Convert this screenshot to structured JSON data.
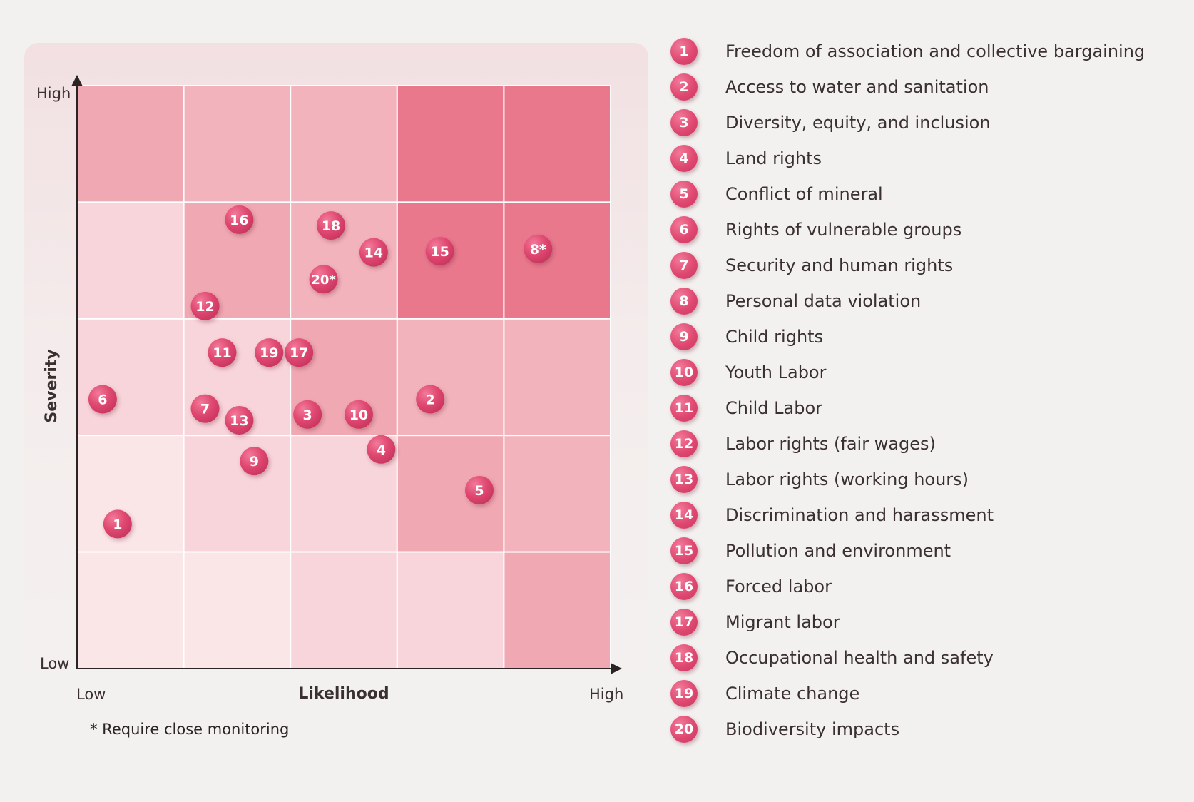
{
  "chart_data": {
    "type": "scatter",
    "title": "",
    "xlabel": "Likelihood",
    "ylabel": "Severity",
    "x_range_labels": {
      "low": "Low",
      "high": "High"
    },
    "y_range_labels": {
      "low": "Low",
      "high": "High"
    },
    "xlim": [
      0,
      5
    ],
    "ylim": [
      0,
      5
    ],
    "grid": {
      "columns": 5,
      "rows": 5
    },
    "cell_colors_top_to_bottom": [
      [
        "#f0a8b2",
        "#f2b3bc",
        "#f2b3bc",
        "#e9788c",
        "#e9788c"
      ],
      [
        "#f8d5da",
        "#f0a8b2",
        "#f2b3bc",
        "#e9788c",
        "#e9788c"
      ],
      [
        "#f8d5da",
        "#f8d5da",
        "#f0a8b2",
        "#f2b3bc",
        "#f2b3bc"
      ],
      [
        "#fae5e7",
        "#f8d5da",
        "#f8d5da",
        "#f0a8b2",
        "#f2b3bc"
      ],
      [
        "#fae5e7",
        "#fae5e7",
        "#f8d5da",
        "#f8d5da",
        "#f0a8b2"
      ]
    ],
    "points": [
      {
        "label": "1",
        "x": 0.38,
        "y": 1.24
      },
      {
        "label": "2",
        "x": 3.31,
        "y": 2.31
      },
      {
        "label": "3",
        "x": 2.16,
        "y": 2.18
      },
      {
        "label": "4",
        "x": 2.85,
        "y": 1.88
      },
      {
        "label": "5",
        "x": 3.77,
        "y": 1.53
      },
      {
        "label": "6",
        "x": 0.24,
        "y": 2.31
      },
      {
        "label": "7",
        "x": 1.2,
        "y": 2.23
      },
      {
        "label": "8*",
        "x": 4.32,
        "y": 3.6
      },
      {
        "label": "9",
        "x": 1.66,
        "y": 1.78
      },
      {
        "label": "10",
        "x": 2.64,
        "y": 2.18
      },
      {
        "label": "11",
        "x": 1.36,
        "y": 2.71
      },
      {
        "label": "12",
        "x": 1.2,
        "y": 3.11
      },
      {
        "label": "13",
        "x": 1.52,
        "y": 2.13
      },
      {
        "label": "14",
        "x": 2.78,
        "y": 3.57
      },
      {
        "label": "15",
        "x": 3.4,
        "y": 3.58
      },
      {
        "label": "16",
        "x": 1.52,
        "y": 3.85
      },
      {
        "label": "17",
        "x": 2.08,
        "y": 2.71
      },
      {
        "label": "18",
        "x": 2.38,
        "y": 3.8
      },
      {
        "label": "19",
        "x": 1.8,
        "y": 2.71
      },
      {
        "label": "20*",
        "x": 2.31,
        "y": 3.34
      }
    ],
    "legend": [
      {
        "id": "1",
        "label": "Freedom of association and collective bargaining"
      },
      {
        "id": "2",
        "label": "Access to water and sanitation"
      },
      {
        "id": "3",
        "label": "Diversity, equity, and inclusion"
      },
      {
        "id": "4",
        "label": "Land rights"
      },
      {
        "id": "5",
        "label": "Conflict of mineral"
      },
      {
        "id": "6",
        "label": "Rights of vulnerable groups"
      },
      {
        "id": "7",
        "label": "Security and human rights"
      },
      {
        "id": "8",
        "label": "Personal data violation"
      },
      {
        "id": "9",
        "label": "Child rights"
      },
      {
        "id": "10",
        "label": "Youth Labor"
      },
      {
        "id": "11",
        "label": "Child Labor"
      },
      {
        "id": "12",
        "label": "Labor rights (fair wages)"
      },
      {
        "id": "13",
        "label": "Labor rights (working hours)"
      },
      {
        "id": "14",
        "label": "Discrimination and harassment"
      },
      {
        "id": "15",
        "label": "Pollution and environment"
      },
      {
        "id": "16",
        "label": "Forced labor"
      },
      {
        "id": "17",
        "label": "Migrant labor"
      },
      {
        "id": "18",
        "label": "Occupational health and safety"
      },
      {
        "id": "19",
        "label": "Climate change"
      },
      {
        "id": "20",
        "label": "Biodiversity impacts"
      }
    ],
    "legend_placement": "right",
    "footnote": "* Require close monitoring"
  },
  "colors": {
    "badge": "#df4870",
    "badge_text": "#ffffff",
    "background": "#f3f1f0",
    "axis": "#2b2424"
  }
}
